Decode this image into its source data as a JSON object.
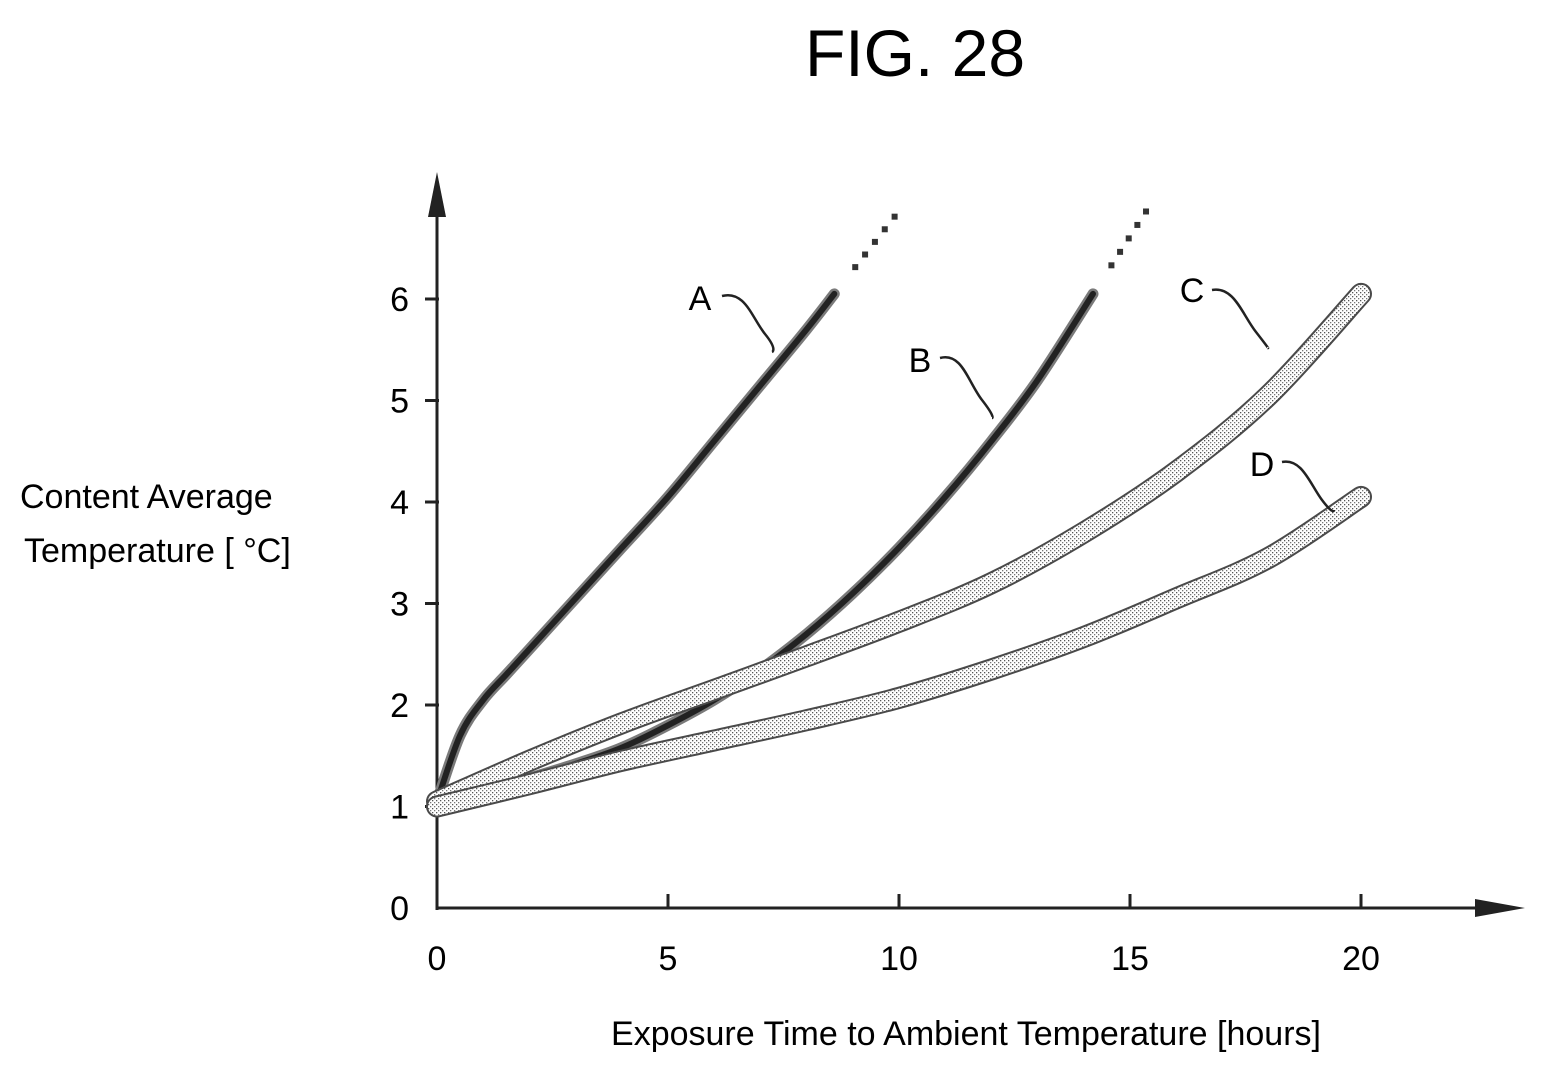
{
  "figure": {
    "title": "FIG. 28"
  },
  "chart_data": {
    "type": "line",
    "title": "FIG. 28",
    "xlabel": "Exposure Time to Ambient Temperature [hours]",
    "ylabel_lines": [
      "Content Average",
      "Temperature [ °C]"
    ],
    "xlim": [
      0,
      23
    ],
    "ylim": [
      0,
      7
    ],
    "xticks": [
      0,
      5,
      10,
      15,
      20
    ],
    "yticks": [
      0,
      1,
      2,
      3,
      4,
      5,
      6
    ],
    "grid": false,
    "series": [
      {
        "name": "A",
        "style": "thick",
        "x": [
          0,
          0.5,
          1,
          1.5,
          2,
          3,
          4,
          5,
          6,
          7,
          8,
          8.6
        ],
        "y": [
          1.05,
          1.7,
          2.05,
          2.3,
          2.55,
          3.05,
          3.55,
          4.05,
          4.6,
          5.15,
          5.7,
          6.05
        ],
        "continues_dotted": true
      },
      {
        "name": "B",
        "style": "thick",
        "x": [
          0,
          1,
          2,
          3,
          4,
          5,
          6,
          7,
          8,
          9,
          10,
          11,
          12,
          13,
          14.2
        ],
        "y": [
          1.05,
          1.15,
          1.28,
          1.42,
          1.58,
          1.8,
          2.05,
          2.35,
          2.7,
          3.1,
          3.55,
          4.05,
          4.6,
          5.2,
          6.05
        ],
        "continues_dotted": true
      },
      {
        "name": "C",
        "style": "band",
        "x": [
          0,
          2,
          4,
          6,
          8,
          10,
          12,
          14,
          16,
          18,
          20
        ],
        "y": [
          1.05,
          1.45,
          1.82,
          2.15,
          2.48,
          2.82,
          3.2,
          3.7,
          4.3,
          5.05,
          6.05
        ]
      },
      {
        "name": "D",
        "style": "band",
        "x": [
          0,
          2,
          4,
          6,
          8,
          10,
          12,
          14,
          16,
          18,
          20
        ],
        "y": [
          1.0,
          1.22,
          1.45,
          1.65,
          1.85,
          2.07,
          2.35,
          2.67,
          3.05,
          3.45,
          4.05
        ]
      }
    ]
  }
}
